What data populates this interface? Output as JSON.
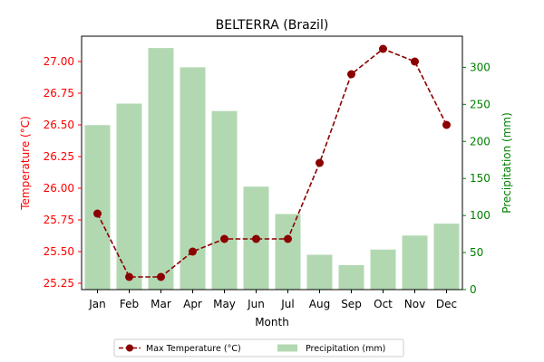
{
  "chart_data": {
    "type": "bar",
    "title": "BELTERRA (Brazil)",
    "xlabel": "Month",
    "categories": [
      "Jan",
      "Feb",
      "Mar",
      "Apr",
      "May",
      "Jun",
      "Jul",
      "Aug",
      "Sep",
      "Oct",
      "Nov",
      "Dec"
    ],
    "series": [
      {
        "name": "Max Temperature (°C)",
        "type": "line",
        "axis": "left",
        "values": [
          25.8,
          25.3,
          25.3,
          25.5,
          25.6,
          25.6,
          25.6,
          26.2,
          26.9,
          27.1,
          27.0,
          26.5
        ]
      },
      {
        "name": "Precipitation (mm)",
        "type": "bar",
        "axis": "right",
        "values": [
          222,
          251,
          326,
          300,
          241,
          139,
          102,
          47,
          33,
          54,
          73,
          89
        ]
      }
    ],
    "y_left": {
      "label": "Temperature (°C)",
      "ylim": [
        25.2,
        27.2
      ],
      "ticks": [
        "25.25",
        "25.50",
        "25.75",
        "26.00",
        "26.25",
        "26.50",
        "26.75",
        "27.00"
      ]
    },
    "y_right": {
      "label": "Precipitation (mm)",
      "ylim": [
        0,
        342
      ],
      "ticks": [
        "0",
        "50",
        "100",
        "150",
        "200",
        "250",
        "300"
      ]
    },
    "grid": false,
    "legend_position": "bottom-center",
    "colors": {
      "temperature_line": "#8b0000",
      "precipitation_bar": "#b2d8b2",
      "left_axis": "#ff0000",
      "right_axis": "#008000",
      "axes": "#000000"
    }
  }
}
